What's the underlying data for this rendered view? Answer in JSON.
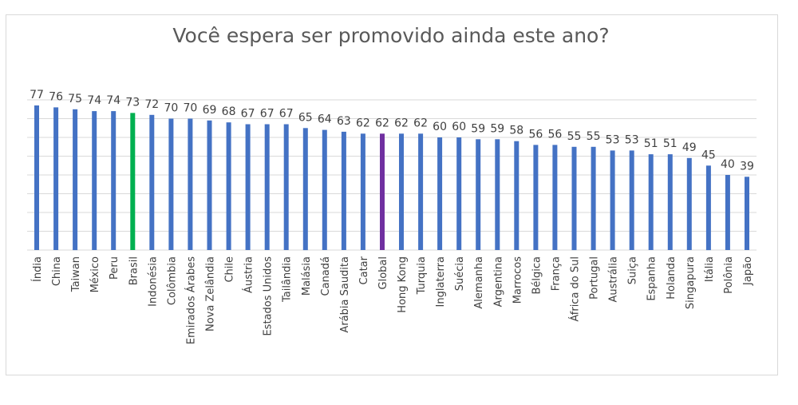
{
  "chart_data": {
    "type": "bar",
    "title": "Você espera ser promovido ainda este ano?",
    "xlabel": "",
    "ylabel": "",
    "ylim": [
      0,
      80
    ],
    "grid": true,
    "legend": "none",
    "categories": [
      "Índia",
      "China",
      "Taiwan",
      "México",
      "Peru",
      "Brasil",
      "Indonésia",
      "Colômbia",
      "Emirados Árabes",
      "Nova Zelândia",
      "Chile",
      "Áustria",
      "Estados Unidos",
      "Tailândia",
      "Malásia",
      "Canadá",
      "Arábia Saudita",
      "Catar",
      "Global",
      "Hong Kong",
      "Turquia",
      "Inglaterra",
      "Suécia",
      "Alemanha",
      "Argentina",
      "Marrocos",
      "Bélgica",
      "França",
      "África do Sul",
      "Portugal",
      "Austrália",
      "Suiça",
      "Espanha",
      "Holanda",
      "Singapura",
      "Itália",
      "Polônia",
      "Japão"
    ],
    "values": [
      77,
      76,
      75,
      74,
      74,
      73,
      72,
      70,
      70,
      69,
      68,
      67,
      67,
      67,
      65,
      64,
      63,
      62,
      62,
      62,
      62,
      60,
      60,
      59,
      59,
      58,
      56,
      56,
      55,
      55,
      53,
      53,
      51,
      51,
      49,
      45,
      40,
      39
    ],
    "colors": {
      "default": "#4472c4",
      "Brasil": "#00b050",
      "Global": "#7030a0"
    },
    "grid_color": "#d9d9d9",
    "label_color": "#404040"
  }
}
